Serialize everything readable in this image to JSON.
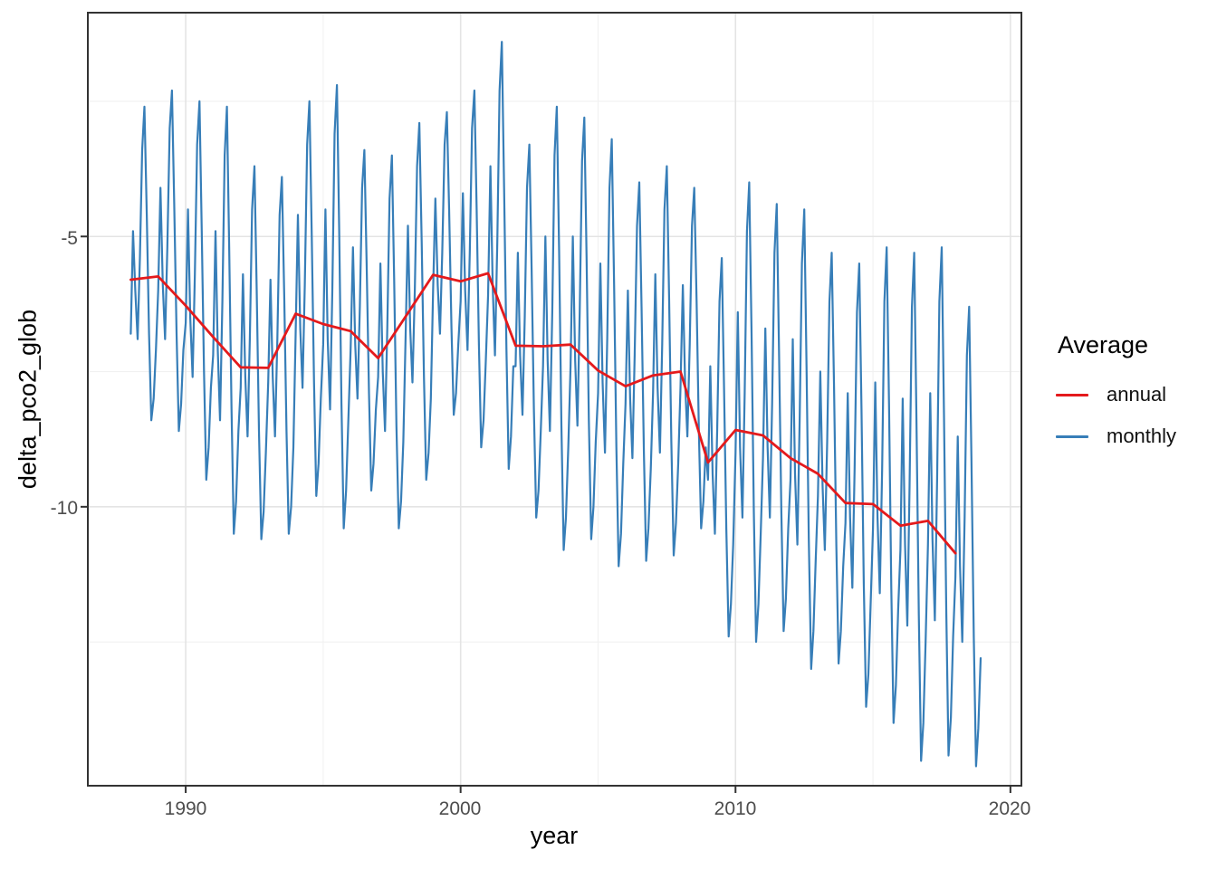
{
  "chart_data": {
    "type": "line",
    "title": "",
    "xlabel": "year",
    "ylabel": "delta_pco2_glob",
    "grid": true,
    "xlim": [
      1986.44,
      2020.4
    ],
    "ylim": [
      -15.16,
      -0.86
    ],
    "x_ticks": [
      1990,
      2000,
      2010,
      2020
    ],
    "x_tick_labels": [
      "1990",
      "2000",
      "2010",
      "2020"
    ],
    "y_ticks": [
      -5,
      -10
    ],
    "y_tick_labels": [
      "-5",
      "-10"
    ],
    "x_minor_gridlines": [
      1995,
      2005,
      2015
    ],
    "y_minor_gridlines": [
      -2.5,
      -7.5,
      -12.5
    ],
    "colors": {
      "annual": "#E41A1C",
      "monthly": "#377EB8",
      "grid_major": "#e4e4e4",
      "grid_minor": "#f1f1f1",
      "panel_border": "#333333",
      "tick_text": "#4d4d4d"
    },
    "legend": {
      "title": "Average",
      "position": "right",
      "items": [
        {
          "label": "annual",
          "color": "#E41A1C"
        },
        {
          "label": "monthly",
          "color": "#377EB8"
        }
      ]
    },
    "series": [
      {
        "name": "monthly",
        "color": "#377EB8",
        "width": 2.2,
        "x_start": 1988,
        "x_step": 0.0833333,
        "values": [
          -6.8,
          -4.9,
          -6.0,
          -6.9,
          -5.4,
          -3.4,
          -2.6,
          -4.6,
          -6.8,
          -8.4,
          -8.0,
          -7.1,
          -6.0,
          -4.1,
          -5.9,
          -6.9,
          -5.2,
          -3.0,
          -2.3,
          -4.4,
          -6.8,
          -8.6,
          -8.1,
          -7.1,
          -6.6,
          -4.5,
          -6.5,
          -7.6,
          -5.7,
          -3.3,
          -2.5,
          -4.9,
          -7.5,
          -9.5,
          -8.9,
          -7.8,
          -7.2,
          -4.9,
          -7.1,
          -8.4,
          -6.2,
          -3.5,
          -2.6,
          -5.2,
          -8.2,
          -10.5,
          -9.9,
          -8.6,
          -7.8,
          -5.7,
          -7.6,
          -8.7,
          -6.9,
          -4.5,
          -3.7,
          -6.0,
          -8.6,
          -10.6,
          -10.1,
          -9.0,
          -7.7,
          -5.8,
          -7.6,
          -8.7,
          -6.9,
          -4.6,
          -3.9,
          -6.1,
          -8.6,
          -10.5,
          -10.0,
          -8.9,
          -6.8,
          -4.6,
          -6.7,
          -7.8,
          -5.9,
          -3.3,
          -2.5,
          -4.9,
          -7.7,
          -9.8,
          -9.2,
          -8.0,
          -7.0,
          -4.5,
          -6.9,
          -8.2,
          -6.0,
          -3.1,
          -2.2,
          -4.9,
          -8.1,
          -10.4,
          -9.7,
          -8.4,
          -7.1,
          -5.2,
          -7.0,
          -8.0,
          -6.3,
          -4.1,
          -3.4,
          -5.5,
          -7.9,
          -9.7,
          -9.2,
          -8.2,
          -7.6,
          -5.5,
          -7.5,
          -8.6,
          -6.7,
          -4.3,
          -3.5,
          -5.8,
          -8.5,
          -10.4,
          -9.9,
          -8.8,
          -6.8,
          -4.8,
          -6.7,
          -7.7,
          -6.0,
          -3.7,
          -2.9,
          -5.1,
          -7.6,
          -9.5,
          -9.0,
          -8.0,
          -6.0,
          -4.3,
          -5.9,
          -6.8,
          -5.3,
          -3.3,
          -2.7,
          -4.5,
          -6.7,
          -8.3,
          -7.9,
          -7.0,
          -6.2,
          -4.2,
          -6.0,
          -7.1,
          -5.3,
          -3.0,
          -2.3,
          -4.5,
          -7.0,
          -8.9,
          -8.4,
          -7.3,
          -6.1,
          -3.7,
          -5.9,
          -7.2,
          -5.1,
          -2.3,
          -1.4,
          -4.1,
          -7.1,
          -9.3,
          -8.7,
          -7.4,
          -7.4,
          -5.3,
          -7.2,
          -8.3,
          -6.5,
          -4.1,
          -3.3,
          -5.6,
          -8.2,
          -10.2,
          -9.7,
          -8.6,
          -7.4,
          -5.0,
          -7.3,
          -8.6,
          -6.4,
          -3.5,
          -2.6,
          -5.3,
          -8.5,
          -10.8,
          -10.2,
          -8.9,
          -7.4,
          -5.0,
          -7.3,
          -8.5,
          -6.4,
          -3.6,
          -2.8,
          -5.4,
          -8.4,
          -10.6,
          -10.0,
          -8.8,
          -7.9,
          -5.5,
          -7.7,
          -9.0,
          -6.9,
          -4.1,
          -3.2,
          -5.9,
          -8.9,
          -11.1,
          -10.5,
          -9.2,
          -8.1,
          -6.0,
          -8.0,
          -9.1,
          -7.2,
          -4.8,
          -4.0,
          -6.3,
          -9.0,
          -11.0,
          -10.4,
          -9.3,
          -7.9,
          -5.7,
          -7.8,
          -9.0,
          -7.0,
          -4.5,
          -3.7,
          -6.1,
          -8.8,
          -10.9,
          -10.3,
          -9.2,
          -7.8,
          -5.9,
          -7.7,
          -8.7,
          -7.0,
          -4.8,
          -4.1,
          -6.2,
          -8.6,
          -10.4,
          -9.9,
          -8.9,
          -9.5,
          -7.4,
          -9.4,
          -10.5,
          -8.6,
          -6.2,
          -5.4,
          -7.8,
          -10.4,
          -12.4,
          -11.8,
          -10.7,
          -9.0,
          -6.4,
          -8.9,
          -10.2,
          -7.9,
          -4.9,
          -4.0,
          -6.8,
          -10.1,
          -12.5,
          -11.8,
          -10.5,
          -9.1,
          -6.7,
          -8.9,
          -10.2,
          -8.1,
          -5.3,
          -4.4,
          -7.1,
          -10.1,
          -12.3,
          -11.7,
          -10.4,
          -9.5,
          -6.9,
          -9.4,
          -10.7,
          -8.4,
          -5.5,
          -4.5,
          -7.4,
          -10.6,
          -13.0,
          -12.3,
          -11.0,
          -9.8,
          -7.5,
          -9.6,
          -10.8,
          -8.8,
          -6.2,
          -5.3,
          -7.8,
          -10.7,
          -12.9,
          -12.3,
          -11.1,
          -10.3,
          -7.9,
          -10.2,
          -11.5,
          -9.3,
          -6.4,
          -5.5,
          -8.2,
          -11.4,
          -13.7,
          -13.1,
          -11.8,
          -10.4,
          -7.7,
          -10.2,
          -11.6,
          -9.3,
          -6.2,
          -5.2,
          -8.1,
          -11.5,
          -14.0,
          -13.3,
          -11.9,
          -10.8,
          -8.0,
          -10.7,
          -12.2,
          -9.6,
          -6.3,
          -5.3,
          -8.4,
          -12.0,
          -14.7,
          -14.0,
          -12.5,
          -10.7,
          -7.9,
          -10.6,
          -12.1,
          -9.5,
          -6.2,
          -5.2,
          -8.3,
          -11.9,
          -14.6,
          -13.9,
          -12.4,
          -11.3,
          -8.7,
          -11.1,
          -12.5,
          -10.2,
          -7.2,
          -6.3,
          -9.1,
          -12.4,
          -14.8,
          -14.1,
          -12.8
        ]
      },
      {
        "name": "annual",
        "color": "#E41A1C",
        "width": 2.8,
        "x_start": 1988,
        "x_step": 1,
        "values": [
          -5.8,
          -5.74,
          -6.28,
          -6.86,
          -7.42,
          -7.43,
          -6.43,
          -6.62,
          -6.75,
          -7.25,
          -6.48,
          -5.71,
          -5.83,
          -5.68,
          -7.02,
          -7.03,
          -7.0,
          -7.48,
          -7.77,
          -7.57,
          -7.5,
          -9.18,
          -8.58,
          -8.68,
          -9.1,
          -9.39,
          -9.93,
          -9.95,
          -10.35,
          -10.26,
          -10.86
        ]
      }
    ]
  }
}
